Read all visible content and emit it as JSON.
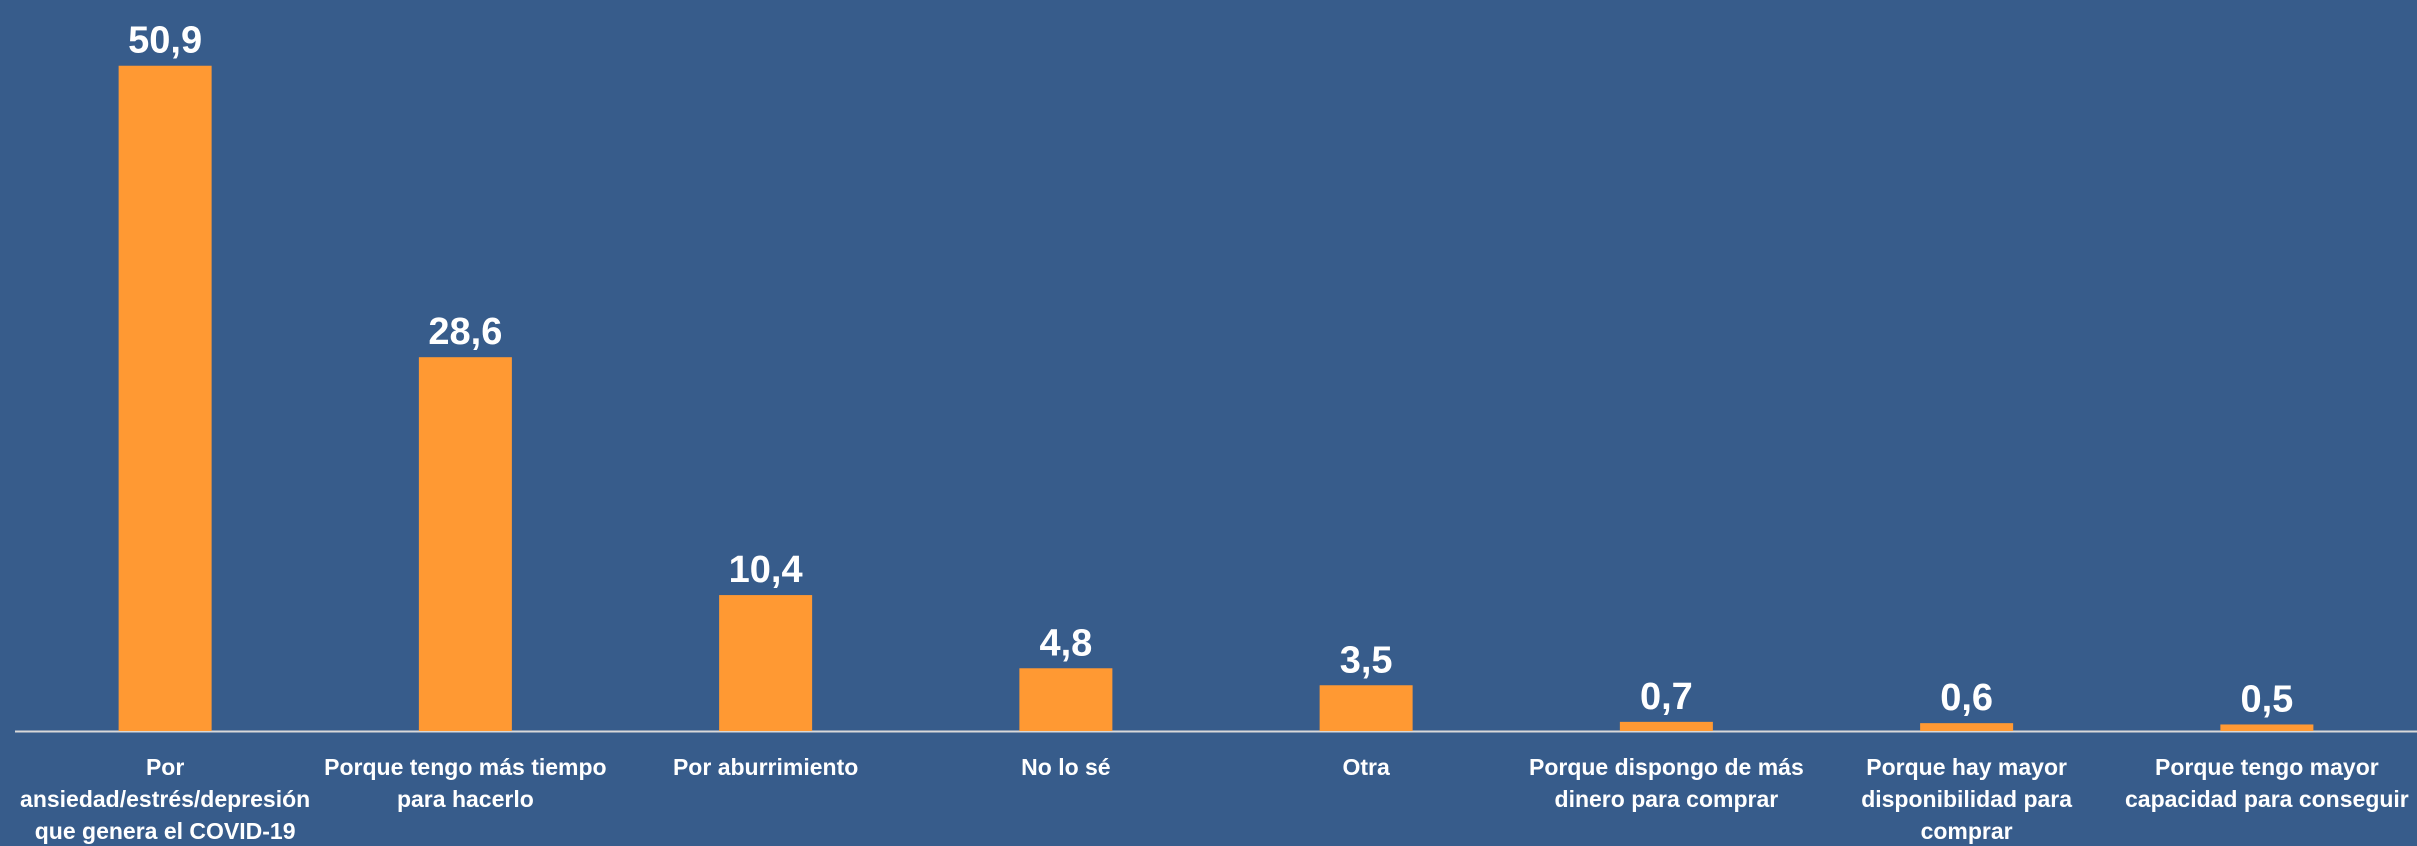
{
  "chart_data": {
    "type": "bar",
    "title": "",
    "xlabel": "",
    "ylabel": "",
    "ylim": [
      0,
      53
    ],
    "grid": false,
    "legend": "none",
    "decimal_separator": ",",
    "categories": [
      [
        "Por",
        "ansiedad/estrés/depresión",
        "que genera el COVID-19"
      ],
      [
        "Porque tengo más tiempo",
        "para hacerlo"
      ],
      [
        "Por aburrimiento"
      ],
      [
        "No lo sé"
      ],
      [
        "Otra"
      ],
      [
        "Porque dispongo de más",
        "dinero para comprar"
      ],
      [
        "Porque hay mayor",
        "disponibilidad para",
        "comprar"
      ],
      [
        "Porque tengo mayor",
        "capacidad para conseguir"
      ]
    ],
    "values": [
      50.9,
      28.6,
      10.4,
      4.8,
      3.5,
      0.7,
      0.6,
      0.5
    ],
    "colors": {
      "background": "#375C8B",
      "bar": "#FF9933",
      "text": "#FFFFFF",
      "axis": "#D9D9D9"
    }
  }
}
